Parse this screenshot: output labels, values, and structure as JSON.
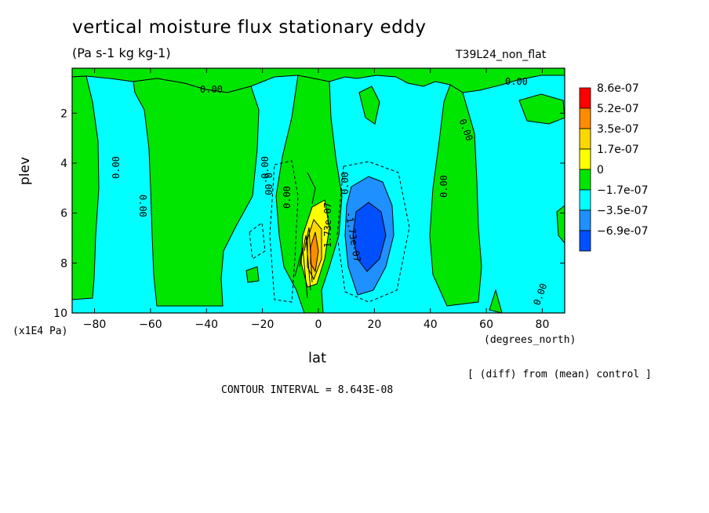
{
  "chart_data": {
    "type": "heatmap",
    "title": "vertical moisture flux stationary eddy",
    "subtitle": "(Pa s-1 kg kg-1)",
    "run_label": "T39L24_non_flat",
    "xlabel": "lat",
    "ylabel": "plev",
    "x_unit": "(degrees_north)",
    "y_unit": "(x1E4 Pa)",
    "xlim": [
      -88,
      88
    ],
    "ylim": [
      10,
      0.2
    ],
    "x_ticks": [
      -80,
      -60,
      -40,
      -20,
      0,
      20,
      40,
      60,
      80
    ],
    "y_ticks": [
      2,
      4,
      6,
      8,
      10
    ],
    "colorbar": {
      "labels": [
        "8.6e-07",
        "5.2e-07",
        "3.5e-07",
        "1.7e-07",
        "0",
        "-1.7e-07",
        "-3.5e-07",
        "-6.9e-07"
      ],
      "colors": [
        "#ff0000",
        "#ff8c00",
        "#ffd700",
        "#ffff00",
        "#00e600",
        "#00ffff",
        "#1e90ff",
        "#0050ff"
      ]
    },
    "contour_labels": [
      "0.00",
      "0.00",
      "0.00",
      "0.00",
      "0.00",
      "0.00",
      "0.00",
      "0.00",
      "0.00",
      "0.00",
      "0.00",
      "-1.73e-07",
      "1.73e-07"
    ],
    "note": "[ (diff) from (mean) control ]",
    "contour_interval": "CONTOUR INTERVAL = 8.643E-08"
  }
}
